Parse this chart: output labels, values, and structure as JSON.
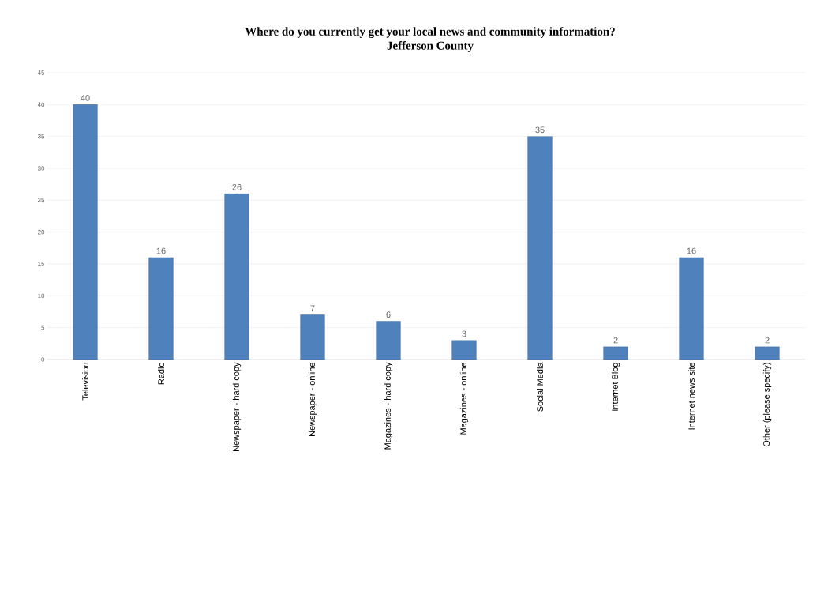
{
  "chart_data": {
    "type": "bar",
    "title": "Where do you currently get your local news and community information?",
    "subtitle": "Jefferson County",
    "categories": [
      "Television",
      "Radio",
      "Newspaper - hard copy",
      "Newspaper - online",
      "Magazines - hard copy",
      "Magazines - online",
      "Social Media",
      "Internet Blog",
      "Internet news site",
      "Other (please specify)"
    ],
    "values": [
      40,
      16,
      26,
      7,
      6,
      3,
      35,
      2,
      16,
      2
    ],
    "color": "#4f81bd",
    "ylim": [
      0,
      45
    ],
    "yticks": [
      0,
      5,
      10,
      15,
      20,
      25,
      30,
      35,
      40,
      45
    ],
    "grid": "y",
    "data_labels": true
  }
}
